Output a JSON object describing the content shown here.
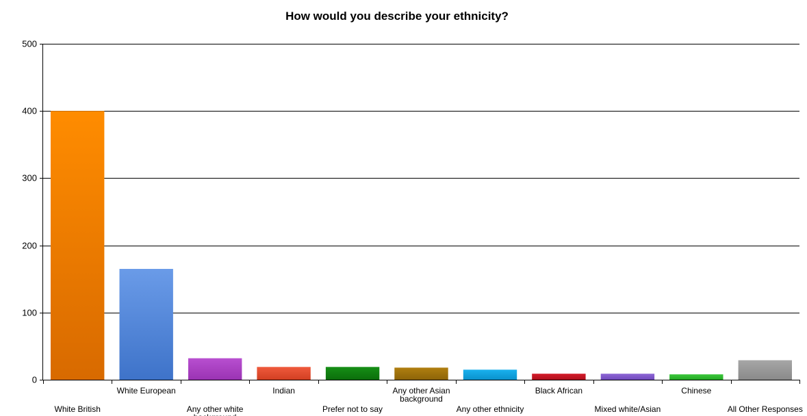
{
  "chart_data": {
    "type": "bar",
    "title": "How would you describe your ethnicity?",
    "xlabel": "",
    "ylabel": "",
    "ylim": [
      0,
      500
    ],
    "yticks": [
      0,
      100,
      200,
      300,
      400,
      500
    ],
    "grid": true,
    "legend": "none",
    "categories": [
      [
        "White British"
      ],
      [
        "White European"
      ],
      [
        "Any other white",
        "background"
      ],
      [
        "Indian"
      ],
      [
        "Prefer not to say"
      ],
      [
        "Any other Asian",
        "background"
      ],
      [
        "Any other ethnicity"
      ],
      [
        "Black African"
      ],
      [
        "Mixed white/Asian"
      ],
      [
        "Chinese"
      ],
      [
        "All Other Responses"
      ]
    ],
    "values": [
      400,
      165,
      32,
      19,
      19,
      18,
      15,
      9,
      9,
      8,
      29
    ],
    "colors": [
      [
        "#ff8c00",
        "#d86a00"
      ],
      [
        "#6a9be8",
        "#3e73c9"
      ],
      [
        "#b84fd0",
        "#9a33b3"
      ],
      [
        "#ef5a3c",
        "#d23f22"
      ],
      [
        "#168f16",
        "#0b6e0b"
      ],
      [
        "#b07f10",
        "#8d6408"
      ],
      [
        "#19b0ee",
        "#0a92cc"
      ],
      [
        "#d41c2a",
        "#b00f1c"
      ],
      [
        "#8e67d6",
        "#7049bc"
      ],
      [
        "#3ec83e",
        "#22a822"
      ],
      [
        "#a6a6a6",
        "#8a8a8a"
      ]
    ]
  }
}
